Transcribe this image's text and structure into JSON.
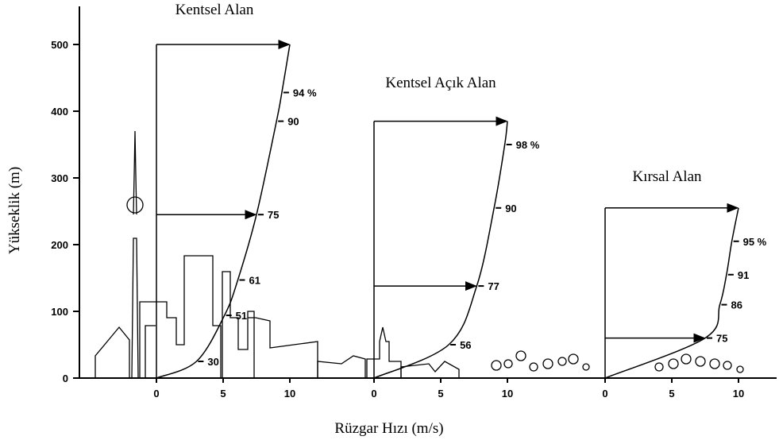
{
  "chart_data": {
    "type": "wind-profile",
    "y_label": "Yükseklik (m)",
    "x_label": "Rüzgar Hızı (m/s)",
    "ylim": [
      0,
      500
    ],
    "yticks": [
      0,
      100,
      200,
      300,
      400,
      500
    ],
    "xticks": [
      0,
      5,
      10
    ],
    "profiles": [
      {
        "title": "Kentsel Alan",
        "gradient_height": 500,
        "markers": [
          {
            "value": 30,
            "label": "30",
            "height": 25
          },
          {
            "value": 51,
            "label": "51",
            "height": 94
          },
          {
            "value": 61,
            "label": "61",
            "height": 147
          },
          {
            "value": 75,
            "label": "75",
            "height": 245,
            "arrow": true
          },
          {
            "value": 90,
            "label": "90",
            "height": 385
          },
          {
            "value": 94,
            "label": "94 %",
            "height": 428
          }
        ]
      },
      {
        "title": "Kentsel Açık Alan",
        "gradient_height": 385,
        "markers": [
          {
            "value": 56,
            "label": "56",
            "height": 50
          },
          {
            "value": 77,
            "label": "77",
            "height": 138,
            "arrow": true
          },
          {
            "value": 90,
            "label": "90",
            "height": 255
          },
          {
            "value": 98,
            "label": "98 %",
            "height": 350
          }
        ]
      },
      {
        "title": "Kırsal Alan",
        "gradient_height": 255,
        "markers": [
          {
            "value": 75,
            "label": "75",
            "height": 60,
            "arrow": true
          },
          {
            "value": 86,
            "label": "86",
            "height": 110
          },
          {
            "value": 91,
            "label": "91",
            "height": 155
          },
          {
            "value": 95,
            "label": "95 %",
            "height": 205
          }
        ]
      }
    ]
  }
}
